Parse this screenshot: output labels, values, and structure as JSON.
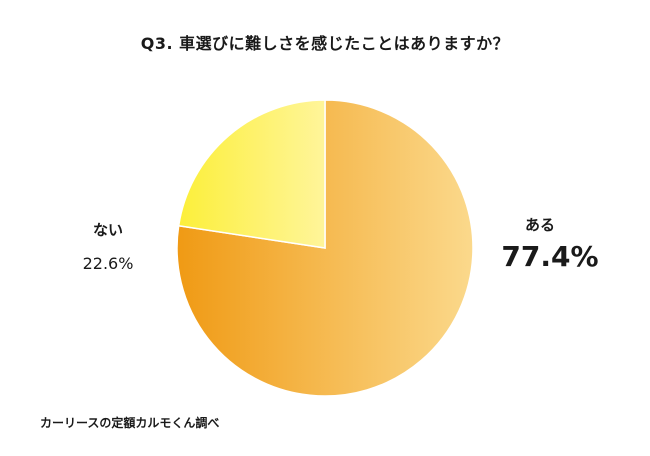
{
  "chart_data": {
    "type": "pie",
    "title": "Q3. 車選びに難しさを感じたことはありますか？",
    "slices": [
      {
        "label": "ある",
        "value": 77.4,
        "display": "77.4%",
        "color_start": "#f09a14",
        "color_end": "#fbd98c"
      },
      {
        "label": "ない",
        "value": 22.6,
        "display": "22.6%",
        "color_start": "#fcef3a",
        "color_end": "#fff59a"
      }
    ],
    "start_angle_deg": 0,
    "direction": "clockwise",
    "legend": "none"
  },
  "source": "カーリースの定額カルモくん調べ"
}
